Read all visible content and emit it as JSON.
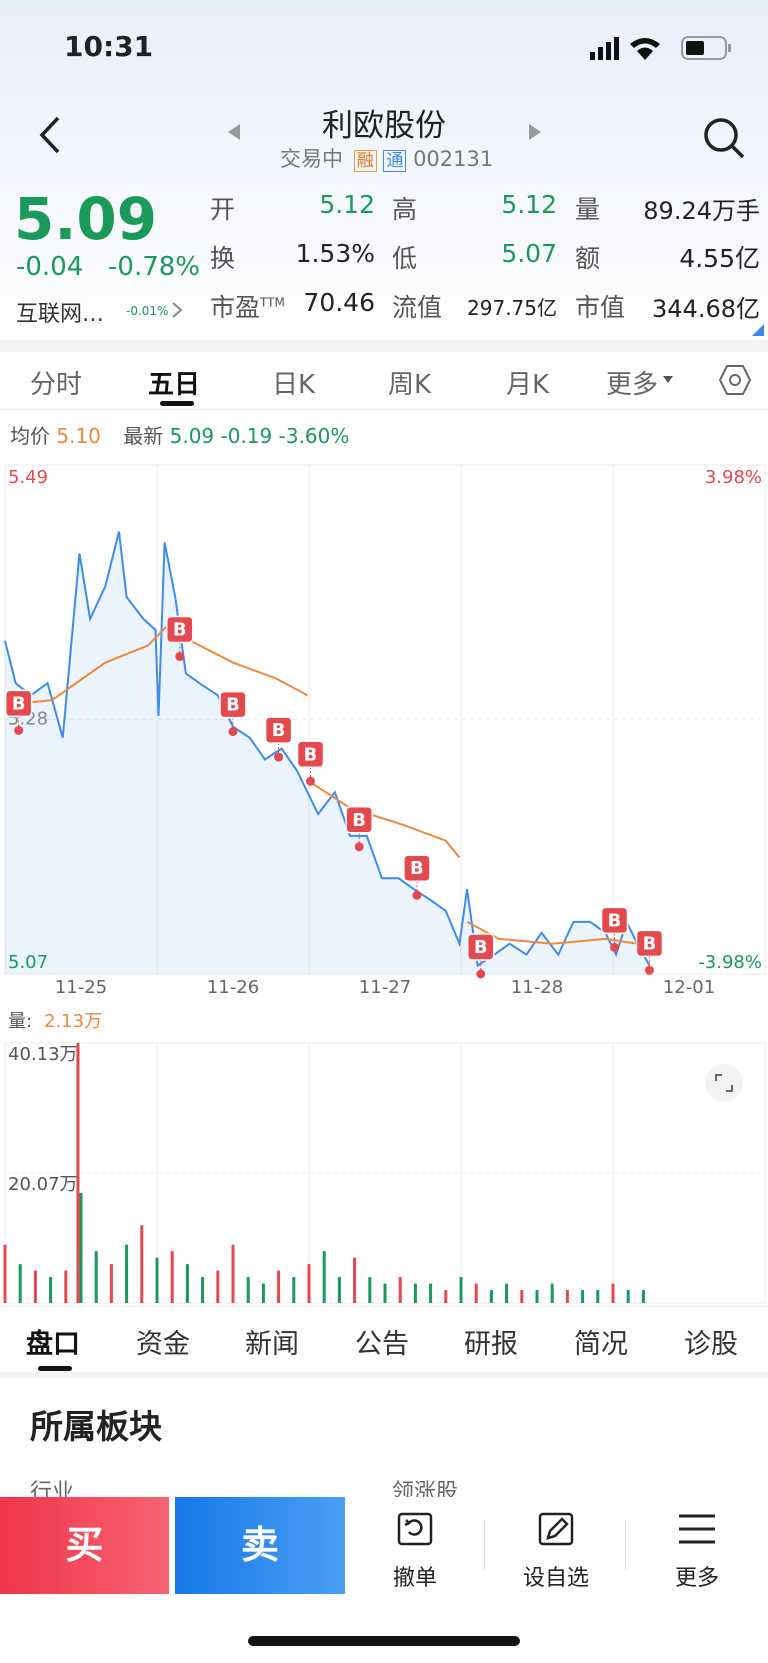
{
  "status_bar": {
    "time": "10:31"
  },
  "header": {
    "title": "利欧股份",
    "status": "交易中",
    "tags": [
      "融",
      "通"
    ],
    "code": "002131"
  },
  "quote": {
    "price": "5.09",
    "change": "-0.04",
    "change_pct": "-0.78%",
    "sector": "互联网…",
    "sector_change": "-0.01%",
    "stats": [
      {
        "label": "开",
        "value": "5.12",
        "color": "#1a9a5a"
      },
      {
        "label": "高",
        "value": "5.12",
        "color": "#1a9a5a"
      },
      {
        "label": "量",
        "value": "89.24万手",
        "color": "#222222"
      },
      {
        "label": "换",
        "value": "1.53%",
        "color": "#222222"
      },
      {
        "label": "低",
        "value": "5.07",
        "color": "#1a9a5a"
      },
      {
        "label": "额",
        "value": "4.55亿",
        "color": "#222222"
      },
      {
        "label": "市盈",
        "sup": "TTM",
        "value": "70.46",
        "color": "#222222"
      },
      {
        "label": "流值",
        "value": "297.75亿",
        "color": "#222222"
      },
      {
        "label": "市值",
        "value": "344.68亿",
        "color": "#222222"
      }
    ]
  },
  "chart_tabs": [
    "分时",
    "五日",
    "日K",
    "周K",
    "月K",
    "更多"
  ],
  "summary": {
    "avg_label": "均价",
    "avg": "5.10",
    "latest_label": "最新",
    "latest": "5.09",
    "change": "-0.19",
    "change_pct": "-3.60%"
  },
  "chart_data": [
    {
      "type": "line",
      "xlim": [
        0,
        5
      ],
      "xticks": [
        {
          "value": 0.5,
          "label": "11-25"
        },
        {
          "value": 1.5,
          "label": "11-26"
        },
        {
          "value": 2.5,
          "label": "11-27"
        },
        {
          "value": 3.5,
          "label": "11-28"
        },
        {
          "value": 4.5,
          "label": "12-01"
        }
      ],
      "ylim": [
        5.07,
        5.49
      ],
      "yticks": [
        5.49,
        5.28,
        5.07
      ],
      "y2lim": [
        -3.98,
        3.98
      ],
      "y2ticks": [
        {
          "value": 3.98,
          "label": "3.98%"
        },
        {
          "value": -3.98,
          "label": "-3.98%"
        }
      ],
      "series": [
        {
          "color": "#3d8bf0",
          "x": [
            0,
            0.07,
            0.17,
            0.28,
            0.38,
            0.49,
            0.56,
            0.66,
            0.75,
            0.8,
            0.91,
            0.99,
            1.01,
            1.05,
            1.12,
            1.19,
            1.29,
            1.4,
            1.5,
            1.61,
            1.71,
            1.82,
            1.92,
            1.99,
            2.06,
            2.17,
            2.27,
            2.38,
            2.48,
            2.59,
            2.69,
            2.8,
            2.9,
            2.99,
            3.04,
            3.11,
            3.22,
            3.32,
            3.43,
            3.53,
            3.64,
            3.74,
            3.85,
            3.95,
            4.02,
            4.09,
            4.16,
            4.24
          ],
          "values": [
            5.345,
            5.31,
            5.3,
            5.31,
            5.265,
            5.417,
            5.363,
            5.39,
            5.435,
            5.381,
            5.363,
            5.354,
            5.283,
            5.426,
            5.381,
            5.318,
            5.309,
            5.3,
            5.274,
            5.265,
            5.247,
            5.256,
            5.238,
            5.22,
            5.202,
            5.22,
            5.184,
            5.184,
            5.149,
            5.149,
            5.14,
            5.131,
            5.122,
            5.095,
            5.14,
            5.077,
            5.086,
            5.095,
            5.086,
            5.104,
            5.086,
            5.113,
            5.113,
            5.104,
            5.086,
            5.113,
            5.095,
            5.077
          ]
        },
        {
          "color": "#f0883e",
          "x": [
            0,
            0.31,
            0.66,
            0.94,
            1.08,
            1.22,
            1.5,
            1.78,
            1.99,
            1.995,
            2.0,
            2.27,
            2.62,
            2.9,
            2.99,
            3.0,
            3.04,
            3.25,
            3.6,
            3.95,
            4.16,
            4.27
          ],
          "values": [
            5.292,
            5.296,
            5.327,
            5.341,
            5.359,
            5.345,
            5.327,
            5.314,
            5.3,
            null,
            5.229,
            5.207,
            5.193,
            5.18,
            5.166,
            null,
            5.113,
            5.099,
            5.095,
            5.099,
            5.095,
            5.104
          ]
        }
      ],
      "markers": {
        "label": "B",
        "color": "#e5484d",
        "x": [
          0.09,
          1.15,
          1.5,
          1.8,
          2.01,
          2.33,
          2.71,
          3.13,
          4.01,
          4.24
        ],
        "values": [
          5.271,
          5.332,
          5.27,
          5.249,
          5.229,
          5.175,
          5.135,
          5.07,
          5.092,
          5.073
        ]
      }
    },
    {
      "type": "bar",
      "label": "量:",
      "current": "2.13万",
      "xlim": [
        0,
        5
      ],
      "ylim": [
        0,
        40.13
      ],
      "yticks": [
        {
          "value": 40.13,
          "label": "40.13万"
        },
        {
          "value": 20.07,
          "label": "20.07万"
        }
      ],
      "x": [
        0.0,
        0.1,
        0.2,
        0.3,
        0.4,
        0.48,
        0.5,
        0.6,
        0.7,
        0.8,
        0.9,
        1.0,
        1.1,
        1.2,
        1.3,
        1.4,
        1.5,
        1.6,
        1.7,
        1.8,
        1.9,
        2.0,
        2.1,
        2.2,
        2.3,
        2.4,
        2.5,
        2.6,
        2.7,
        2.8,
        2.9,
        3.0,
        3.1,
        3.2,
        3.3,
        3.4,
        3.5,
        3.6,
        3.7,
        3.8,
        3.9,
        4.0,
        4.1,
        4.2
      ],
      "values": [
        9,
        6,
        5,
        4,
        5,
        40.13,
        17,
        8,
        6,
        9,
        12,
        7,
        8,
        6,
        4,
        5,
        9,
        4,
        3,
        5,
        4,
        6,
        8,
        4,
        7,
        4,
        3,
        4,
        3,
        3,
        2,
        4,
        3,
        2,
        3,
        2,
        2,
        3,
        2,
        2,
        2,
        3,
        2,
        2
      ],
      "colors": [
        "#e5484d",
        "#1a9a5a",
        "#e5484d",
        "#1a9a5a",
        "#e5484d",
        "#e5484d",
        "#1a9a5a",
        "#1a9a5a",
        "#e5484d",
        "#1a9a5a",
        "#e5484d",
        "#1a9a5a",
        "#e5484d",
        "#1a9a5a",
        "#1a9a5a",
        "#e5484d",
        "#e5484d",
        "#1a9a5a",
        "#1a9a5a",
        "#e5484d",
        "#1a9a5a",
        "#e5484d",
        "#1a9a5a",
        "#1a9a5a",
        "#e5484d",
        "#1a9a5a",
        "#1a9a5a",
        "#e5484d",
        "#1a9a5a",
        "#1a9a5a",
        "#e5484d",
        "#1a9a5a",
        "#e5484d",
        "#1a9a5a",
        "#1a9a5a",
        "#e5484d",
        "#1a9a5a",
        "#1a9a5a",
        "#e5484d",
        "#1a9a5a",
        "#1a9a5a",
        "#e5484d",
        "#1a9a5a",
        "#1a9a5a"
      ]
    }
  ],
  "detail_tabs": [
    "盘口",
    "资金",
    "新闻",
    "公告",
    "研报",
    "简况",
    "诊股"
  ],
  "section": {
    "title": "所属板块",
    "columns": [
      "行业",
      "领涨股"
    ]
  },
  "actions": {
    "buy": "买",
    "sell": "卖",
    "items": [
      "撤单",
      "设自选",
      "更多"
    ]
  }
}
